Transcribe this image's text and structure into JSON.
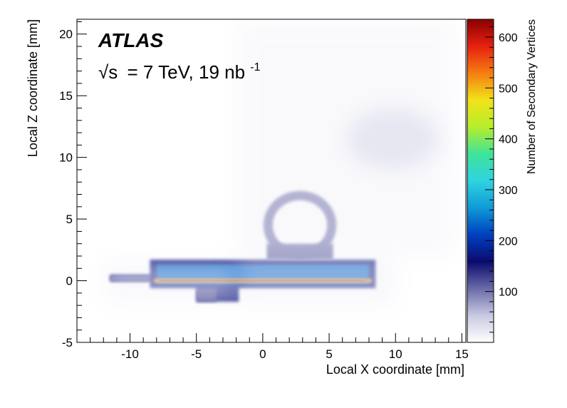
{
  "chart_data": {
    "type": "heatmap",
    "experiment": "ATLAS",
    "energy": {
      "sqrt_symbol": "√s",
      "eq": "= 7 TeV, 19 nb",
      "exp": "-1"
    },
    "xlabel": "Local X coordinate [mm]",
    "ylabel": "Local Z coordinate [mm]",
    "zlabel": "Number of Secondary Vertices",
    "xlim": [
      -14.0,
      15.3
    ],
    "ylim": [
      -5.0,
      21.2
    ],
    "zlim": [
      0,
      635
    ],
    "x_ticks": [
      -10,
      -5,
      0,
      5,
      10,
      15
    ],
    "x_tick_labels": [
      "-10",
      "-5",
      "0",
      "5",
      "10",
      "15"
    ],
    "y_ticks": [
      -5,
      0,
      5,
      10,
      15,
      20
    ],
    "y_tick_labels": [
      "-5",
      "0",
      "5",
      "10",
      "15",
      "20"
    ],
    "z_ticks": [
      100,
      200,
      300,
      400,
      500,
      600
    ],
    "z_tick_labels": [
      "100",
      "200",
      "300",
      "400",
      "500",
      "600"
    ],
    "colormap": [
      "#ffffff",
      "#c9c9e3",
      "#6a6aa8",
      "#0b0b6e",
      "#0040c0",
      "#0f9ad6",
      "#2fd3e0",
      "#3fe39a",
      "#b6ee2a",
      "#f2e21a",
      "#f57d10",
      "#e6210f",
      "#8a0000"
    ],
    "features": [
      {
        "name": "board",
        "shape": "polygon",
        "points": [
          [
            -11.5,
            0.5
          ],
          [
            -8.5,
            0.5
          ],
          [
            -8.5,
            1.7
          ],
          [
            8.5,
            1.7
          ],
          [
            8.5,
            -0.6
          ],
          [
            -1.8,
            -0.6
          ],
          [
            -1.8,
            -1.7
          ],
          [
            -5.0,
            -1.7
          ],
          [
            -5.0,
            -0.6
          ],
          [
            -8.5,
            -0.6
          ],
          [
            -8.5,
            -0.1
          ],
          [
            -11.5,
            -0.1
          ]
        ],
        "value": 170
      },
      {
        "name": "board-fill",
        "shape": "rect",
        "x": [
          -8.0,
          8.0
        ],
        "y": [
          -0.3,
          1.3
        ],
        "value": 230
      },
      {
        "name": "lower-tab",
        "shape": "rect",
        "x": [
          -5.0,
          -3.5
        ],
        "y": [
          -1.7,
          -0.6
        ],
        "value": 130
      },
      {
        "name": "left-stub",
        "shape": "rect",
        "x": [
          -11.5,
          -8.5
        ],
        "y": [
          0.0,
          0.4
        ],
        "value": 120
      },
      {
        "name": "sensor-line",
        "shape": "rect",
        "x": [
          -8.2,
          8.2
        ],
        "y": [
          -0.15,
          0.15
        ],
        "value": 520
      },
      {
        "name": "sensor-core",
        "shape": "rect",
        "x": [
          -7.8,
          7.8
        ],
        "y": [
          -0.05,
          0.05
        ],
        "value": 620
      },
      {
        "name": "cooling-ring",
        "shape": "ring",
        "cx": 2.8,
        "cy": 4.5,
        "r": 2.4,
        "width": 0.7,
        "value": 110
      },
      {
        "name": "ring-foot",
        "shape": "rect",
        "x": [
          0.3,
          5.3
        ],
        "y": [
          1.7,
          3.0
        ],
        "value": 110
      },
      {
        "name": "upper-blob",
        "shape": "ellipse",
        "cx": 9.8,
        "cy": 11.5,
        "rx": 3.5,
        "ry": 2.5,
        "value": 40
      },
      {
        "name": "background-upper",
        "shape": "rect",
        "x": [
          -2.0,
          14.5
        ],
        "y": [
          2.0,
          21.0
        ],
        "value": 10
      },
      {
        "name": "background-left",
        "shape": "rect",
        "x": [
          -12.0,
          -2.0
        ],
        "y": [
          -2.0,
          1.8
        ],
        "value": 10
      },
      {
        "name": "background-low",
        "shape": "rect",
        "x": [
          -2.0,
          10.0
        ],
        "y": [
          -2.0,
          2.0
        ],
        "value": 12
      }
    ]
  }
}
